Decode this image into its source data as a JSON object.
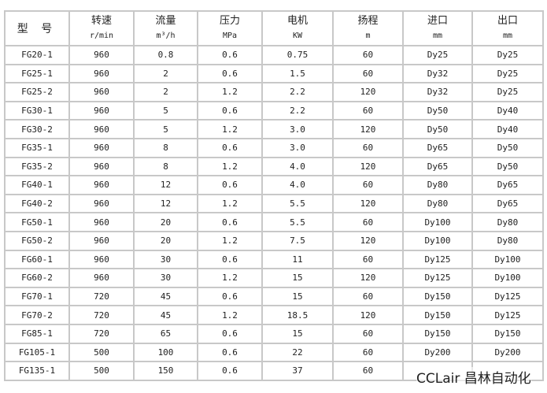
{
  "table": {
    "headers": [
      {
        "label": "型 号",
        "unit": ""
      },
      {
        "label": "转速",
        "unit": "r/min"
      },
      {
        "label": "流量",
        "unit": "m³/h"
      },
      {
        "label": "压力",
        "unit": "MPa"
      },
      {
        "label": "电机",
        "unit": "KW"
      },
      {
        "label": "扬程",
        "unit": "m"
      },
      {
        "label": "进口",
        "unit": "mm"
      },
      {
        "label": "出口",
        "unit": "mm"
      }
    ],
    "rows": [
      [
        "FG20-1",
        "960",
        "0.8",
        "0.6",
        "0.75",
        "60",
        "Dy25",
        "Dy25"
      ],
      [
        "FG25-1",
        "960",
        "2",
        "0.6",
        "1.5",
        "60",
        "Dy32",
        "Dy25"
      ],
      [
        "FG25-2",
        "960",
        "2",
        "1.2",
        "2.2",
        "120",
        "Dy32",
        "Dy25"
      ],
      [
        "FG30-1",
        "960",
        "5",
        "0.6",
        "2.2",
        "60",
        "Dy50",
        "Dy40"
      ],
      [
        "FG30-2",
        "960",
        "5",
        "1.2",
        "3.0",
        "120",
        "Dy50",
        "Dy40"
      ],
      [
        "FG35-1",
        "960",
        "8",
        "0.6",
        "3.0",
        "60",
        "Dy65",
        "Dy50"
      ],
      [
        "FG35-2",
        "960",
        "8",
        "1.2",
        "4.0",
        "120",
        "Dy65",
        "Dy50"
      ],
      [
        "FG40-1",
        "960",
        "12",
        "0.6",
        "4.0",
        "60",
        "Dy80",
        "Dy65"
      ],
      [
        "FG40-2",
        "960",
        "12",
        "1.2",
        "5.5",
        "120",
        "Dy80",
        "Dy65"
      ],
      [
        "FG50-1",
        "960",
        "20",
        "0.6",
        "5.5",
        "60",
        "Dy100",
        "Dy80"
      ],
      [
        "FG50-2",
        "960",
        "20",
        "1.2",
        "7.5",
        "120",
        "Dy100",
        "Dy80"
      ],
      [
        "FG60-1",
        "960",
        "30",
        "0.6",
        "11",
        "60",
        "Dy125",
        "Dy100"
      ],
      [
        "FG60-2",
        "960",
        "30",
        "1.2",
        "15",
        "120",
        "Dy125",
        "Dy100"
      ],
      [
        "FG70-1",
        "720",
        "45",
        "0.6",
        "15",
        "60",
        "Dy150",
        "Dy125"
      ],
      [
        "FG70-2",
        "720",
        "45",
        "1.2",
        "18.5",
        "120",
        "Dy150",
        "Dy125"
      ],
      [
        "FG85-1",
        "720",
        "65",
        "0.6",
        "15",
        "60",
        "Dy150",
        "Dy150"
      ],
      [
        "FG105-1",
        "500",
        "100",
        "0.6",
        "22",
        "60",
        "Dy200",
        "Dy200"
      ],
      [
        "FG135-1",
        "500",
        "150",
        "0.6",
        "37",
        "60",
        "",
        ""
      ]
    ]
  },
  "watermark": "CCLair 昌林自动化"
}
